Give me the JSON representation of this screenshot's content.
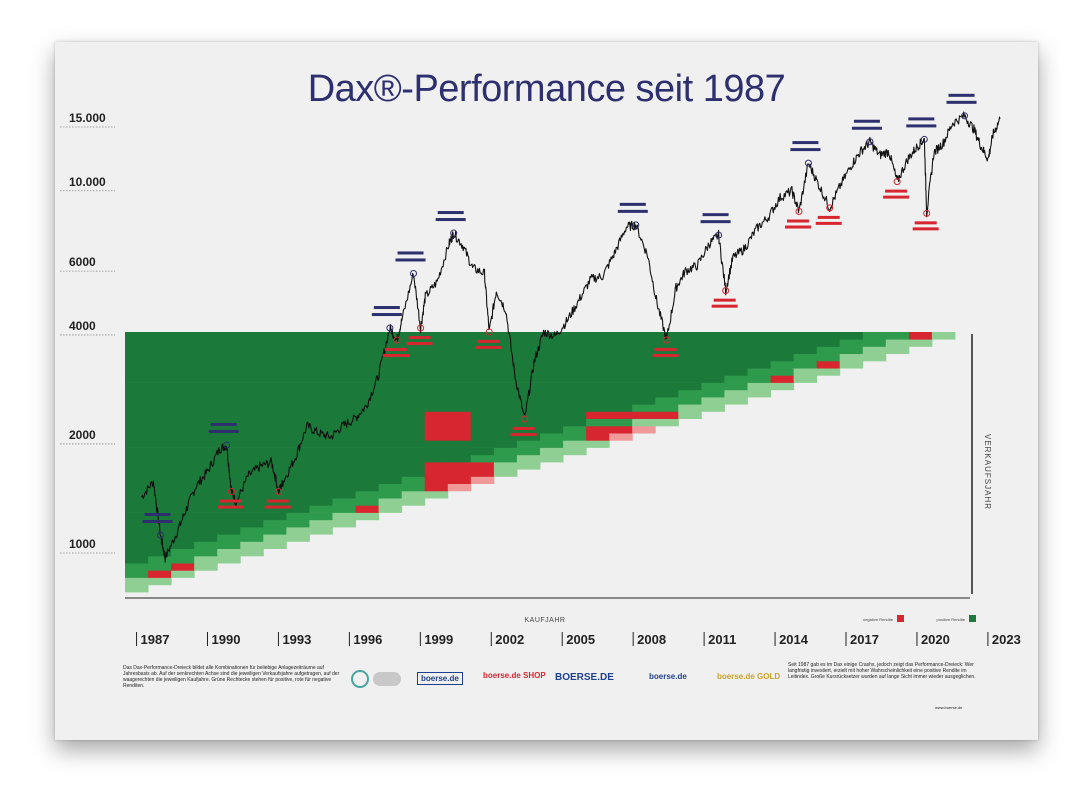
{
  "poster": {
    "title": "Dax®-Performance seit 1987",
    "vertical_label": "VERKAUFSJAHR",
    "kaufjahr_label": "KAUFJAHR"
  },
  "chart_data": {
    "type": "line",
    "title": "Dax®-Performance seit 1987",
    "yscale": "log",
    "ylim": [
      700,
      17500
    ],
    "xlim": [
      1986.3,
      2023.3
    ],
    "y_ticks": [
      {
        "value": 1000,
        "label": "1000"
      },
      {
        "value": 2000,
        "label": "2000"
      },
      {
        "value": 4000,
        "label": "4000"
      },
      {
        "value": 6000,
        "label": "6000"
      },
      {
        "value": 10000,
        "label": "10.000"
      },
      {
        "value": 15000,
        "label": "15.000"
      }
    ],
    "x_tick_labels": [
      "1987",
      "1990",
      "1993",
      "1996",
      "1999",
      "2002",
      "2005",
      "2008",
      "2011",
      "2014",
      "2017",
      "2020",
      "2023"
    ],
    "series": [
      {
        "points": [
          [
            1987.0,
            1400
          ],
          [
            1987.5,
            1550
          ],
          [
            1987.8,
            1100
          ],
          [
            1988.0,
            950
          ],
          [
            1988.5,
            1120
          ],
          [
            1988.9,
            1300
          ],
          [
            1989.3,
            1500
          ],
          [
            1989.8,
            1650
          ],
          [
            1990.3,
            1900
          ],
          [
            1990.6,
            1950
          ],
          [
            1990.8,
            1450
          ],
          [
            1991.0,
            1350
          ],
          [
            1991.5,
            1600
          ],
          [
            1992.0,
            1700
          ],
          [
            1992.5,
            1750
          ],
          [
            1992.8,
            1450
          ],
          [
            1993.0,
            1550
          ],
          [
            1993.5,
            1800
          ],
          [
            1994.0,
            2200
          ],
          [
            1994.5,
            2100
          ],
          [
            1995.0,
            2050
          ],
          [
            1995.5,
            2200
          ],
          [
            1996.0,
            2300
          ],
          [
            1996.5,
            2500
          ],
          [
            1997.0,
            3000
          ],
          [
            1997.5,
            4100
          ],
          [
            1997.8,
            3800
          ],
          [
            1998.0,
            4300
          ],
          [
            1998.5,
            5800
          ],
          [
            1998.8,
            4100
          ],
          [
            1999.0,
            5000
          ],
          [
            1999.5,
            5500
          ],
          [
            2000.0,
            7000
          ],
          [
            2000.2,
            7500
          ],
          [
            2000.6,
            6900
          ],
          [
            2001.0,
            6000
          ],
          [
            2001.5,
            5800
          ],
          [
            2001.7,
            4000
          ],
          [
            2002.0,
            5200
          ],
          [
            2002.4,
            4600
          ],
          [
            2002.8,
            3000
          ],
          [
            2003.2,
            2300
          ],
          [
            2003.6,
            3300
          ],
          [
            2004.0,
            4000
          ],
          [
            2004.5,
            3900
          ],
          [
            2005.0,
            4300
          ],
          [
            2005.5,
            4900
          ],
          [
            2006.0,
            5600
          ],
          [
            2006.5,
            5700
          ],
          [
            2007.0,
            6600
          ],
          [
            2007.5,
            7800
          ],
          [
            2007.9,
            7900
          ],
          [
            2008.4,
            6500
          ],
          [
            2008.8,
            4800
          ],
          [
            2009.2,
            3800
          ],
          [
            2009.6,
            5300
          ],
          [
            2010.0,
            5900
          ],
          [
            2010.5,
            6100
          ],
          [
            2011.0,
            7000
          ],
          [
            2011.4,
            7400
          ],
          [
            2011.7,
            5200
          ],
          [
            2012.0,
            6400
          ],
          [
            2012.5,
            6800
          ],
          [
            2013.0,
            7700
          ],
          [
            2013.5,
            8300
          ],
          [
            2014.0,
            9400
          ],
          [
            2014.5,
            9800
          ],
          [
            2014.8,
            8600
          ],
          [
            2015.2,
            11700
          ],
          [
            2015.6,
            10300
          ],
          [
            2016.1,
            8800
          ],
          [
            2016.5,
            10000
          ],
          [
            2017.0,
            11500
          ],
          [
            2017.4,
            12600
          ],
          [
            2017.8,
            13400
          ],
          [
            2018.2,
            12300
          ],
          [
            2018.6,
            12600
          ],
          [
            2018.95,
            10400
          ],
          [
            2019.4,
            12000
          ],
          [
            2019.8,
            13000
          ],
          [
            2020.1,
            13600
          ],
          [
            2020.2,
            8500
          ],
          [
            2020.5,
            12500
          ],
          [
            2020.9,
            13300
          ],
          [
            2021.3,
            15100
          ],
          [
            2021.8,
            15800
          ],
          [
            2022.2,
            14500
          ],
          [
            2022.5,
            13000
          ],
          [
            2022.8,
            12000
          ],
          [
            2023.0,
            14000
          ],
          [
            2023.3,
            15500
          ]
        ]
      }
    ],
    "heatmap": {
      "buy_years": 36,
      "legend_negative": "negative Rendite",
      "legend_positive": "positive Rendite",
      "colors": {
        "positive_dark": "#1b7a3a",
        "positive_mid": "#2e9a4c",
        "positive_light": "#8fcf93",
        "negative": "#d7262f",
        "negative_light": "#f09999"
      }
    }
  },
  "footer": {
    "left_text": "Das Dax-Performance-Dreieck bildet alle Kombinationen für beliebige Anlagezeiträume auf Jahresbasis ab. Auf der senkrechten Achse sind die jeweiligen Verkaufsjahre aufgetragen, auf der waagerechten die jeweiligen Kaufjahre. Grüne Rechtecke stehen für positive, rote für negative Renditen.",
    "right_text": "Seit 1987 gab es im Dax einige Crashs, jedoch zeigt das Performance-Dreieck: Wer langfristig investiert, erzielt mit hoher Wahrscheinlichkeit eine positive Rendite im Leitindex. Große Kursrücksetzer wurden auf lange Sicht immer wieder ausgeglichen.",
    "credit": "www.boerse.de",
    "logos": [
      "boerse.de",
      "boerse.de SHOP",
      "BOERSE.DE",
      "boerse.de",
      "boerse.de GOLD"
    ]
  }
}
